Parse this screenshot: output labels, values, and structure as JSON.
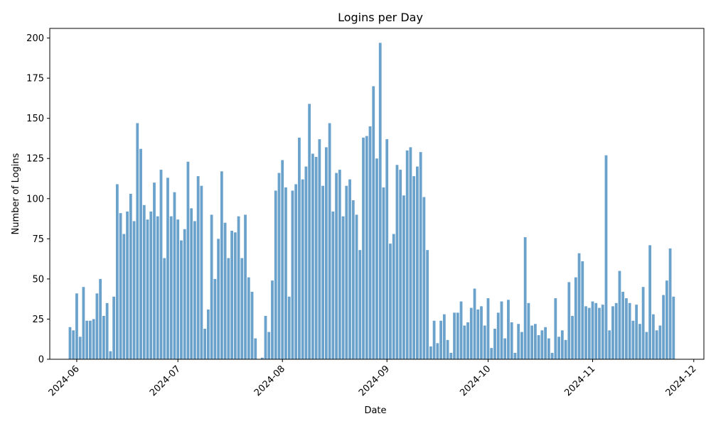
{
  "chart_data": {
    "type": "bar",
    "title": "Logins per Day",
    "xlabel": "Date",
    "ylabel": "Number of Logins",
    "x_start": "2024-05-30",
    "xlim": [
      "2024-05-24",
      "2024-12-04"
    ],
    "ylim": [
      0,
      206
    ],
    "x_ticks": [
      "2024-06",
      "2024-07",
      "2024-08",
      "2024-09",
      "2024-10",
      "2024-11",
      "2024-12"
    ],
    "y_ticks": [
      0,
      25,
      50,
      75,
      100,
      125,
      150,
      175,
      200
    ],
    "bar_color": "#6aa2cc",
    "grid": false,
    "values": [
      20,
      18,
      41,
      14,
      45,
      24,
      24,
      25,
      41,
      50,
      27,
      35,
      5,
      39,
      109,
      91,
      78,
      92,
      103,
      86,
      147,
      131,
      96,
      87,
      92,
      110,
      89,
      118,
      63,
      113,
      89,
      104,
      87,
      74,
      81,
      123,
      94,
      86,
      114,
      108,
      19,
      31,
      90,
      50,
      75,
      117,
      85,
      63,
      80,
      79,
      89,
      63,
      90,
      51,
      42,
      13,
      0,
      1,
      27,
      17,
      49,
      105,
      116,
      124,
      107,
      39,
      105,
      109,
      138,
      112,
      120,
      159,
      128,
      126,
      137,
      108,
      132,
      147,
      92,
      116,
      118,
      89,
      108,
      112,
      99,
      90,
      68,
      138,
      139,
      145,
      170,
      125,
      197,
      107,
      137,
      72,
      78,
      121,
      118,
      102,
      130,
      132,
      114,
      120,
      129,
      101,
      68,
      8,
      24,
      10,
      24,
      28,
      12,
      4,
      29,
      29,
      36,
      21,
      23,
      32,
      44,
      31,
      33,
      21,
      38,
      7,
      19,
      29,
      36,
      13,
      37,
      23,
      4,
      22,
      17,
      76,
      35,
      21,
      22,
      15,
      18,
      20,
      13,
      4,
      38,
      14,
      18,
      12,
      48,
      27,
      51,
      66,
      61,
      33,
      32,
      36,
      35,
      32,
      34,
      127,
      18,
      33,
      35,
      55,
      42,
      38,
      35,
      24,
      34,
      22,
      45,
      17,
      71,
      28,
      18,
      21,
      40,
      49,
      69,
      39
    ]
  }
}
